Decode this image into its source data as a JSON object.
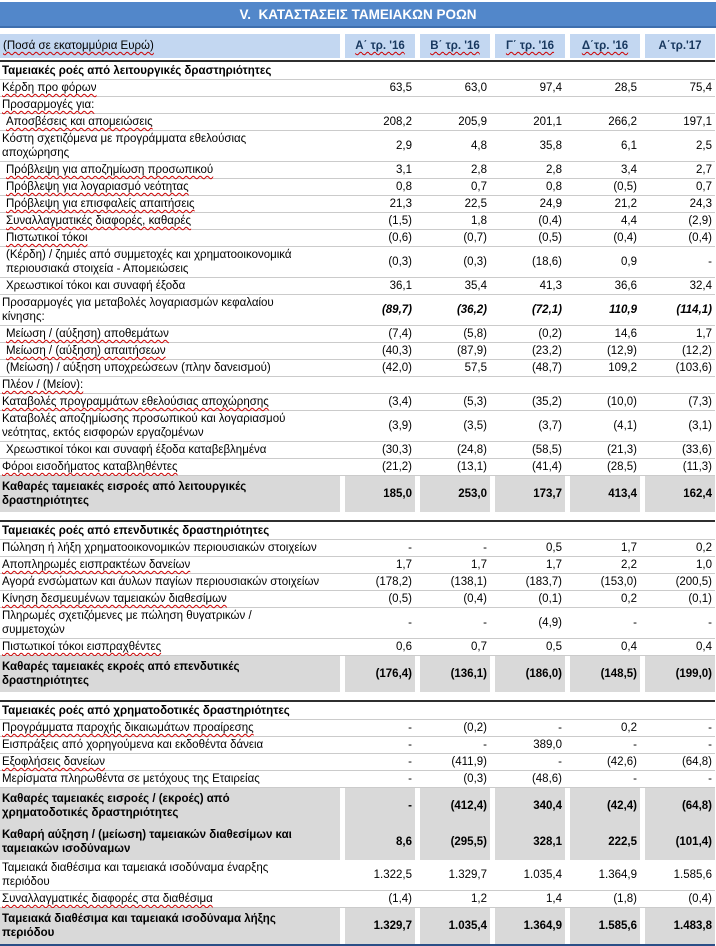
{
  "title": "V.  ΚΑΤΑΣΤΑΣΕΙΣ ΤΑΜΕΙΑΚΩΝ ΡΟΩΝ",
  "unit_note": "(Ποσά σε εκατομμύρια Ευρώ)",
  "columns": [
    {
      "label": "Α΄ τρ. '16",
      "wavy": true
    },
    {
      "label": "Β΄ τρ. '16",
      "wavy": true
    },
    {
      "label": "Γ΄ τρ. '16",
      "wavy": true
    },
    {
      "label": "Δ΄τρ. '16",
      "wavy": true
    },
    {
      "label": "Α΄τρ.'17",
      "wavy": false
    }
  ],
  "colors": {
    "title_bg": "#5287CA",
    "title_border": "#3E6FAE",
    "header_bg": "#C3D7F1",
    "header_text": "#17375E",
    "total_row_bg": "#D9D9D9",
    "row_line": "#CBCBCB",
    "section_line": "#2F2F2F",
    "table_bottom_line": "#2B4F87",
    "spellcheck_wavy": "#CC0000"
  },
  "sections": [
    {
      "header": "Ταμειακές ροές από λειτουργικές δραστηριότητες",
      "rows": [
        {
          "label": "Κέρδη προ φόρων",
          "values": [
            "63,5",
            "63,0",
            "97,4",
            "28,5",
            "75,4"
          ],
          "wavy": true
        },
        {
          "label": "Προσαρμογές για:",
          "values": [
            "",
            "",
            "",
            "",
            ""
          ],
          "wavy": true
        },
        {
          "label": "Αποσβέσεις και απομειώσεις",
          "values": [
            "208,2",
            "205,9",
            "201,1",
            "266,2",
            "197,1"
          ],
          "wavy": true,
          "indent": true
        },
        {
          "label": "Κόστη σχετιζόμενα με προγράμματα εθελούσιας αποχώρησης",
          "values": [
            "2,9",
            "4,8",
            "35,8",
            "6,1",
            "2,5"
          ]
        },
        {
          "label": "Πρόβλεψη για αποζημίωση προσωπικού",
          "values": [
            "3,1",
            "2,8",
            "2,8",
            "3,4",
            "2,7"
          ],
          "wavy": true,
          "indent": true
        },
        {
          "label": "Πρόβλεψη για λογαριασμό νεότητας",
          "values": [
            "0,8",
            "0,7",
            "0,8",
            "(0,5)",
            "0,7"
          ],
          "wavy": true,
          "indent": true
        },
        {
          "label": "Πρόβλεψη για επισφαλείς απαιτήσεις",
          "values": [
            "21,3",
            "22,5",
            "24,9",
            "21,2",
            "24,3"
          ],
          "wavy": true,
          "indent": true
        },
        {
          "label": "Συναλλαγματικές διαφορές, καθαρές",
          "values": [
            "(1,5)",
            "1,8",
            "(0,4)",
            "4,4",
            "(2,9)"
          ],
          "wavy": true,
          "indent": true
        },
        {
          "label": "Πιστωτικοί τόκοι",
          "values": [
            "(0,6)",
            "(0,7)",
            "(0,5)",
            "(0,4)",
            "(0,4)"
          ],
          "wavy": true,
          "indent": true
        },
        {
          "label": "(Κέρδη) / ζημιές από συμμετοχές και χρηματοοικονομικά περιουσιακά στοιχεία - Απομειώσεις",
          "values": [
            "(0,3)",
            "(0,3)",
            "(18,6)",
            "0,9",
            "-"
          ],
          "indent": true
        },
        {
          "label": "Χρεωστικοί τόκοι και συναφή έξοδα",
          "values": [
            "36,1",
            "35,4",
            "41,3",
            "36,6",
            "32,4"
          ],
          "indent": true
        },
        {
          "label": "Προσαρμογές για μεταβολές λογαριασμών κεφαλαίου κίνησης:",
          "values": [
            "(89,7)",
            "(36,2)",
            "(72,1)",
            "110,9",
            "(114,1)"
          ],
          "values_style": "bold-italic"
        },
        {
          "label": "Μείωση / (αύξηση) αποθεμάτων",
          "values": [
            "(7,4)",
            "(5,8)",
            "(0,2)",
            "14,6",
            "1,7"
          ],
          "wavy": true,
          "indent": true
        },
        {
          "label": "Μείωση / (αύξηση) απαιτήσεων",
          "values": [
            "(40,3)",
            "(87,9)",
            "(23,2)",
            "(12,9)",
            "(12,2)"
          ],
          "wavy": true,
          "indent": true
        },
        {
          "label": "(Μείωση) / αύξηση υποχρεώσεων (πλην δανεισμού)",
          "values": [
            "(42,0)",
            "57,5",
            "(48,7)",
            "109,2",
            "(103,6)"
          ],
          "indent": true,
          "nowrap": true
        },
        {
          "label": "Πλέον / (Μείον):",
          "values": [
            "",
            "",
            "",
            "",
            ""
          ],
          "wavy": true
        },
        {
          "label": "Καταβολές προγραμμάτων εθελούσιας αποχώρησης",
          "values": [
            "(3,4)",
            "(5,3)",
            "(35,2)",
            "(10,0)",
            "(7,3)"
          ],
          "wavy": true,
          "nowrap": true
        },
        {
          "label": "Καταβολές αποζημίωσης προσωπικού και λογαριασμού νεότητας, εκτός εισφορών εργαζομένων",
          "values": [
            "(3,9)",
            "(3,5)",
            "(3,7)",
            "(4,1)",
            "(3,1)"
          ]
        },
        {
          "label": "Χρεωστικοί τόκοι και συναφή έξοδα καταβεβλημένα",
          "values": [
            "(30,3)",
            "(24,8)",
            "(58,5)",
            "(21,3)",
            "(33,6)"
          ],
          "indent": true,
          "nowrap": true
        },
        {
          "label": "Φόροι εισοδήματος καταβληθέντες",
          "values": [
            "(21,2)",
            "(13,1)",
            "(41,4)",
            "(28,5)",
            "(11,3)"
          ],
          "wavy": true
        },
        {
          "label": "Καθαρές ταμειακές εισροές από λειτουργικές δραστηριότητες",
          "values": [
            "185,0",
            "253,0",
            "173,7",
            "413,4",
            "162,4"
          ],
          "total": true
        }
      ]
    },
    {
      "header": "Ταμειακές ροές από επενδυτικές δραστηριότητες",
      "rows": [
        {
          "label": "Πώληση ή λήξη χρηματοοικονομικών περιουσιακών στοιχείων",
          "values": [
            "-",
            "-",
            "0,5",
            "1,7",
            "0,2"
          ],
          "nowrap": true
        },
        {
          "label": "Αποπληρωμές εισπρακτέων δανείων",
          "values": [
            "1,7",
            "1,7",
            "1,7",
            "2,2",
            "1,0"
          ],
          "wavy": true
        },
        {
          "label": "Αγορά ενσώματων και άυλων παγίων περιουσιακών στοιχείων",
          "values": [
            "(178,2)",
            "(138,1)",
            "(183,7)",
            "(153,0)",
            "(200,5)"
          ],
          "nowrap": true
        },
        {
          "label": "Κίνηση δεσμευμένων ταμειακών διαθεσίμων",
          "values": [
            "(0,5)",
            "(0,4)",
            "(0,1)",
            "0,2",
            "(0,1)"
          ],
          "wavy": true
        },
        {
          "label": "Πληρωμές σχετιζόμενες με πώληση θυγατρικών / συμμετοχών",
          "values": [
            "-",
            "-",
            "(4,9)",
            "-",
            "-"
          ]
        },
        {
          "label": "Πιστωτικοί τόκοι εισπραχθέντες",
          "values": [
            "0,6",
            "0,7",
            "0,5",
            "0,4",
            "0,4"
          ],
          "wavy": true
        },
        {
          "label": "Καθαρές ταμειακές εκροές από επενδυτικές δραστηριότητες",
          "values": [
            "(176,4)",
            "(136,1)",
            "(186,0)",
            "(148,5)",
            "(199,0)"
          ],
          "total": true
        }
      ]
    },
    {
      "header": "Ταμειακές ροές από χρηματοδοτικές δραστηριότητες",
      "rows": [
        {
          "label": "Προγράμματα παροχής δικαιωμάτων προαίρεσης",
          "values": [
            "-",
            "(0,2)",
            "-",
            "0,2",
            "-"
          ],
          "wavy": true,
          "nowrap": true
        },
        {
          "label": "Εισπράξεις από χορηγούμενα και εκδοθέντα δάνεια",
          "values": [
            "-",
            "-",
            "389,0",
            "-",
            "-"
          ],
          "nowrap": true
        },
        {
          "label": "Εξοφλήσεις δανείων",
          "values": [
            "-",
            "(411,9)",
            "-",
            "(42,6)",
            "(64,8)"
          ],
          "wavy": true
        },
        {
          "label": "Μερίσματα πληρωθέντα σε μετόχους της Εταιρείας",
          "values": [
            "-",
            "(0,3)",
            "(48,6)",
            "-",
            "-"
          ],
          "nowrap": true
        },
        {
          "label": "Καθαρές ταμειακές εισροές / (εκροές) από χρηματοδοτικές δραστηριότητες",
          "values": [
            "-",
            "(412,4)",
            "340,4",
            "(42,4)",
            "(64,8)"
          ],
          "total": true
        },
        {
          "label": "Καθαρή αύξηση / (μείωση) ταμειακών διαθεσίμων και ταμειακών ισοδύναμων",
          "values": [
            "8,6",
            "(295,5)",
            "328,1",
            "222,5",
            "(101,4)"
          ],
          "total": true
        },
        {
          "label": "Ταμειακά διαθέσιμα και ταμειακά ισοδύναμα έναρξης περιόδου",
          "values": [
            "1.322,5",
            "1.329,7",
            "1.035,4",
            "1.364,9",
            "1.585,6"
          ]
        },
        {
          "label": "Συναλλαγματικές διαφορές στα διαθέσιμα",
          "values": [
            "(1,4)",
            "1,2",
            "1,4",
            "(1,8)",
            "(0,4)"
          ],
          "wavy": true,
          "nowrap": true
        },
        {
          "label": "Ταμειακά διαθέσιμα και ταμειακά ισοδύναμα λήξης περιόδου",
          "values": [
            "1.329,7",
            "1.035,4",
            "1.364,9",
            "1.585,6",
            "1.483,8"
          ],
          "total": true,
          "last": true
        }
      ]
    }
  ]
}
